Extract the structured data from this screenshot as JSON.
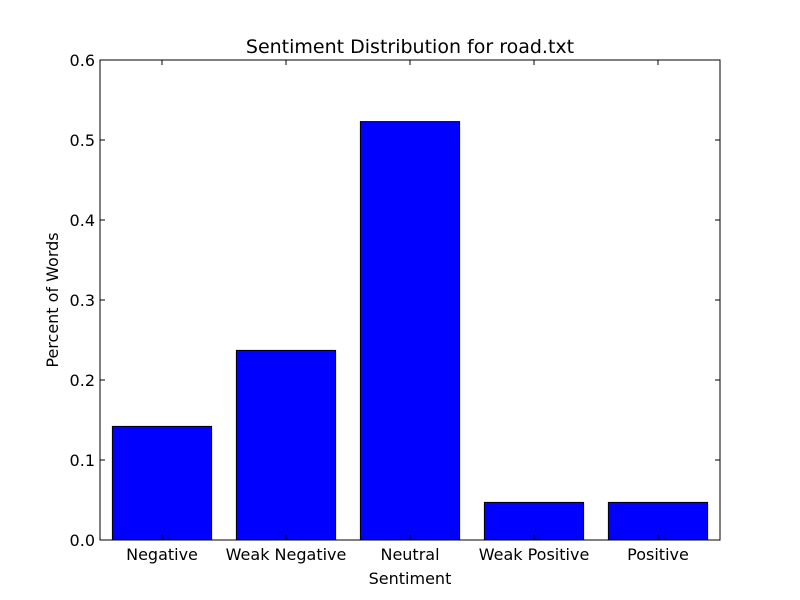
{
  "chart_data": {
    "type": "bar",
    "title": "Sentiment Distribution for road.txt",
    "xlabel": "Sentiment",
    "ylabel": "Percent of Words",
    "categories": [
      "Negative",
      "Weak Negative",
      "Neutral",
      "Weak Positive",
      "Positive"
    ],
    "values": [
      0.142,
      0.237,
      0.523,
      0.047,
      0.047
    ],
    "ylim": [
      0,
      0.6
    ],
    "yticks": [
      "0.0",
      "0.1",
      "0.2",
      "0.3",
      "0.4",
      "0.5",
      "0.6"
    ],
    "grid": false,
    "bar_color": "#0000ff",
    "edge_color": "#000000"
  }
}
